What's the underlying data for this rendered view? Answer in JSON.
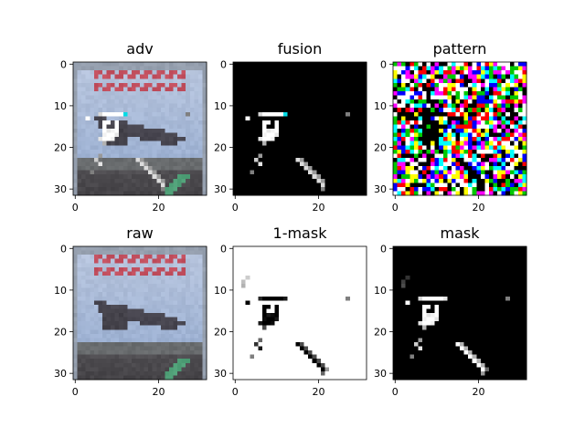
{
  "figure": {
    "grid_size": 32,
    "ticks": [
      0,
      10,
      20,
      30
    ],
    "xticks": [
      0,
      20
    ],
    "panels": [
      {
        "title": "adv",
        "kind": "adv"
      },
      {
        "title": "fusion",
        "kind": "fusion"
      },
      {
        "title": "pattern",
        "kind": "pattern"
      },
      {
        "title": "raw",
        "kind": "raw"
      },
      {
        "title": "1-mask",
        "kind": "inv_mask"
      },
      {
        "title": "mask",
        "kind": "mask"
      }
    ]
  },
  "chart_data": [
    {
      "type": "heatmap",
      "title": "adv",
      "xlim": [
        0,
        31
      ],
      "ylim": [
        31,
        0
      ],
      "x_ticks": [
        0,
        20
      ],
      "y_ticks": [
        0,
        10,
        20,
        30
      ],
      "grid": false,
      "content": "32x32 RGB image: aircraft over runway with trigger pixels overlaid"
    },
    {
      "type": "heatmap",
      "title": "fusion",
      "xlim": [
        0,
        31
      ],
      "ylim": [
        31,
        0
      ],
      "x_ticks": [
        0,
        20
      ],
      "y_ticks": [
        0,
        10,
        20,
        30
      ],
      "grid": false,
      "content": "32x32 image: trigger pixels on black background"
    },
    {
      "type": "heatmap",
      "title": "pattern",
      "xlim": [
        0,
        31
      ],
      "ylim": [
        31,
        0
      ],
      "x_ticks": [
        0,
        20
      ],
      "y_ticks": [
        0,
        10,
        20,
        30
      ],
      "grid": false,
      "content": "32x32 multicolor noise pattern"
    },
    {
      "type": "heatmap",
      "title": "raw",
      "xlim": [
        0,
        31
      ],
      "ylim": [
        31,
        0
      ],
      "x_ticks": [
        0,
        20
      ],
      "y_ticks": [
        0,
        10,
        20,
        30
      ],
      "grid": false,
      "content": "32x32 RGB image: aircraft over runway"
    },
    {
      "type": "heatmap",
      "title": "1-mask",
      "xlim": [
        0,
        31
      ],
      "ylim": [
        31,
        0
      ],
      "x_ticks": [
        0,
        20
      ],
      "y_ticks": [
        0,
        10,
        20,
        30
      ],
      "grid": false,
      "content": "32x32 grayscale: inverted mask, dark trigger pixels on white"
    },
    {
      "type": "heatmap",
      "title": "mask",
      "xlim": [
        0,
        31
      ],
      "ylim": [
        31,
        0
      ],
      "x_ticks": [
        0,
        20
      ],
      "y_ticks": [
        0,
        10,
        20,
        30
      ],
      "grid": false,
      "content": "32x32 grayscale: bright trigger pixels on black"
    }
  ]
}
